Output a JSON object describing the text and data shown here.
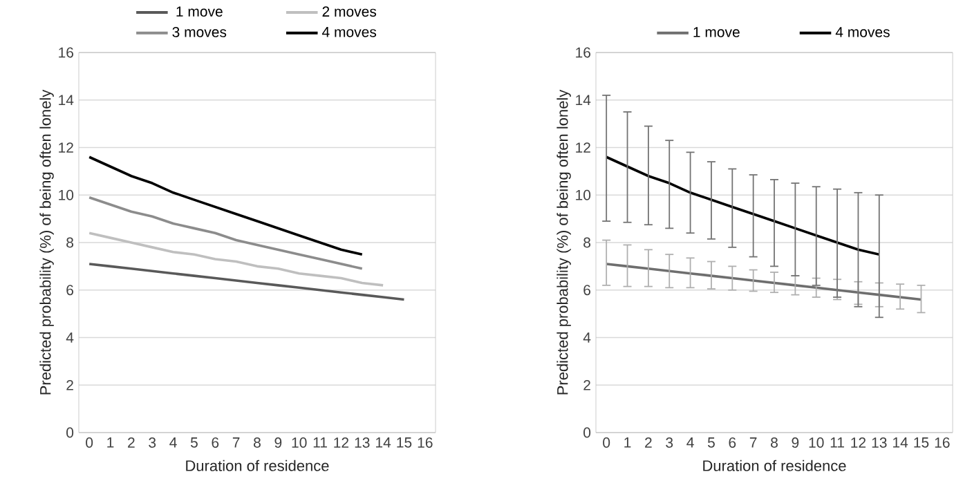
{
  "chart_data": [
    {
      "type": "line",
      "categories": [
        "0",
        "1",
        "2",
        "3",
        "4",
        "5",
        "6",
        "7",
        "8",
        "9",
        "10",
        "11",
        "12",
        "13",
        "14",
        "15",
        "16"
      ],
      "xlabel": "Duration of residence",
      "ylabel": "Predicted probability (%) of being often lonely",
      "ylim": [
        0,
        16
      ],
      "yticks": [
        0,
        2,
        4,
        6,
        8,
        10,
        12,
        14,
        16
      ],
      "grid": "y",
      "legend": "top",
      "series": [
        {
          "name": "1 move",
          "color": "#595959",
          "values": [
            7.1,
            7.0,
            6.9,
            6.8,
            6.7,
            6.6,
            6.5,
            6.4,
            6.3,
            6.2,
            6.1,
            6.0,
            5.9,
            5.8,
            5.7,
            5.6,
            null
          ]
        },
        {
          "name": "2 moves",
          "color": "#bfbfbf",
          "values": [
            8.4,
            8.2,
            8.0,
            7.8,
            7.6,
            7.5,
            7.3,
            7.2,
            7.0,
            6.9,
            6.7,
            6.6,
            6.5,
            6.3,
            6.2,
            null,
            null
          ]
        },
        {
          "name": "3 moves",
          "color": "#8c8c8c",
          "values": [
            9.9,
            9.6,
            9.3,
            9.1,
            8.8,
            8.6,
            8.4,
            8.1,
            7.9,
            7.7,
            7.5,
            7.3,
            7.1,
            6.9,
            null,
            null,
            null
          ]
        },
        {
          "name": "4 moves",
          "color": "#000000",
          "values": [
            11.6,
            11.2,
            10.8,
            10.5,
            10.1,
            9.8,
            9.5,
            9.2,
            8.9,
            8.6,
            8.3,
            8.0,
            7.7,
            7.5,
            null,
            null,
            null
          ]
        }
      ]
    },
    {
      "type": "line",
      "categories": [
        "0",
        "1",
        "2",
        "3",
        "4",
        "5",
        "6",
        "7",
        "8",
        "9",
        "10",
        "11",
        "12",
        "13",
        "14",
        "15",
        "16"
      ],
      "xlabel": "Duration of residence",
      "ylabel": "Predicted probability (%) of being often lonely",
      "ylim": [
        0,
        16
      ],
      "yticks": [
        0,
        2,
        4,
        6,
        8,
        10,
        12,
        14,
        16
      ],
      "grid": "y",
      "legend": "top",
      "series": [
        {
          "name": "1 move",
          "color": "#6e6e6e",
          "values": [
            7.1,
            7.0,
            6.9,
            6.8,
            6.7,
            6.6,
            6.5,
            6.4,
            6.3,
            6.2,
            6.1,
            6.0,
            5.9,
            5.8,
            5.7,
            5.6,
            null
          ],
          "errors": [
            [
              6.2,
              8.1
            ],
            [
              6.15,
              7.9
            ],
            [
              6.15,
              7.7
            ],
            [
              6.1,
              7.5
            ],
            [
              6.1,
              7.35
            ],
            [
              6.05,
              7.2
            ],
            [
              6.0,
              7.0
            ],
            [
              5.95,
              6.85
            ],
            [
              5.9,
              6.75
            ],
            [
              5.8,
              6.6
            ],
            [
              5.7,
              6.5
            ],
            [
              5.6,
              6.45
            ],
            [
              5.4,
              6.35
            ],
            [
              5.3,
              6.3
            ],
            [
              5.2,
              6.25
            ],
            [
              5.05,
              6.2
            ],
            null
          ]
        },
        {
          "name": "4 moves",
          "color": "#000000",
          "values": [
            11.6,
            11.2,
            10.8,
            10.5,
            10.1,
            9.8,
            9.5,
            9.2,
            8.9,
            8.6,
            8.3,
            8.0,
            7.7,
            7.5,
            null,
            null,
            null
          ],
          "errors": [
            [
              8.9,
              14.2
            ],
            [
              8.85,
              13.5
            ],
            [
              8.75,
              12.9
            ],
            [
              8.6,
              12.3
            ],
            [
              8.4,
              11.8
            ],
            [
              8.15,
              11.4
            ],
            [
              7.8,
              11.1
            ],
            [
              7.4,
              10.85
            ],
            [
              7.0,
              10.65
            ],
            [
              6.6,
              10.5
            ],
            [
              6.2,
              10.35
            ],
            [
              5.7,
              10.25
            ],
            [
              5.3,
              10.1
            ],
            [
              4.85,
              10.0
            ],
            null,
            null,
            null
          ]
        }
      ]
    }
  ]
}
